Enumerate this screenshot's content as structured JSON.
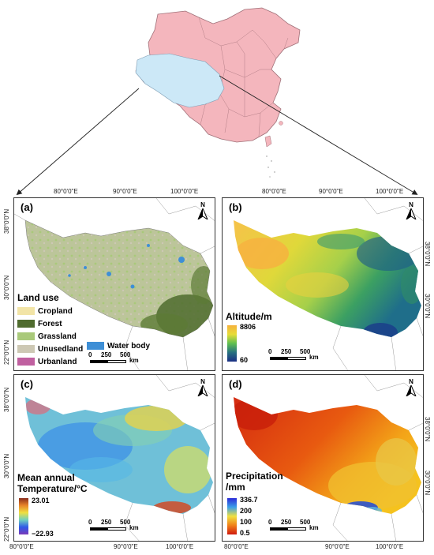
{
  "overview": {
    "highlight_color": "#cce8f7",
    "country_color": "#f4b6bd"
  },
  "panels": [
    {
      "id": "a",
      "label": "a"
    },
    {
      "id": "b",
      "label": "b"
    },
    {
      "id": "c",
      "label": "c"
    },
    {
      "id": "d",
      "label": "d"
    }
  ],
  "coords": {
    "lon80": "80°0'0\"E",
    "lon90": "90°0'0\"E",
    "lon100": "100°0'0\"E",
    "lat38": "38°0'0\"N",
    "lat30": "30°0'0\"N",
    "lat22": "22°0'0\"N",
    "lat38r": "38°0'0\"N",
    "lat30r": "30°0'0\"N"
  },
  "north_label": "N",
  "landuse": {
    "title": "Land use",
    "items": [
      {
        "label": "Cropland",
        "color": "#f2e4a6"
      },
      {
        "label": "Forest",
        "color": "#4f6b2e"
      },
      {
        "label": "Grassland",
        "color": "#a9c97a"
      },
      {
        "label": "Unusedland",
        "color": "#cdc8b4"
      },
      {
        "label": "Urbanland",
        "color": "#c060a0"
      }
    ],
    "water": {
      "label": "Water body",
      "color": "#3e8fd6"
    }
  },
  "altitude": {
    "title": "Altitude/m",
    "max": "8806",
    "min": "60"
  },
  "temperature": {
    "title_line1": "Mean annual",
    "title_line2": "Temperature/°C",
    "max": "23.01",
    "min": "−22.93"
  },
  "precipitation": {
    "title_line1": "Precipitation",
    "title_line2": "/mm",
    "ticks": [
      "336.7",
      "200",
      "100",
      "0.5"
    ]
  },
  "scalebar": {
    "n0": "0",
    "n1": "250",
    "n2": "500",
    "unit": "km"
  }
}
